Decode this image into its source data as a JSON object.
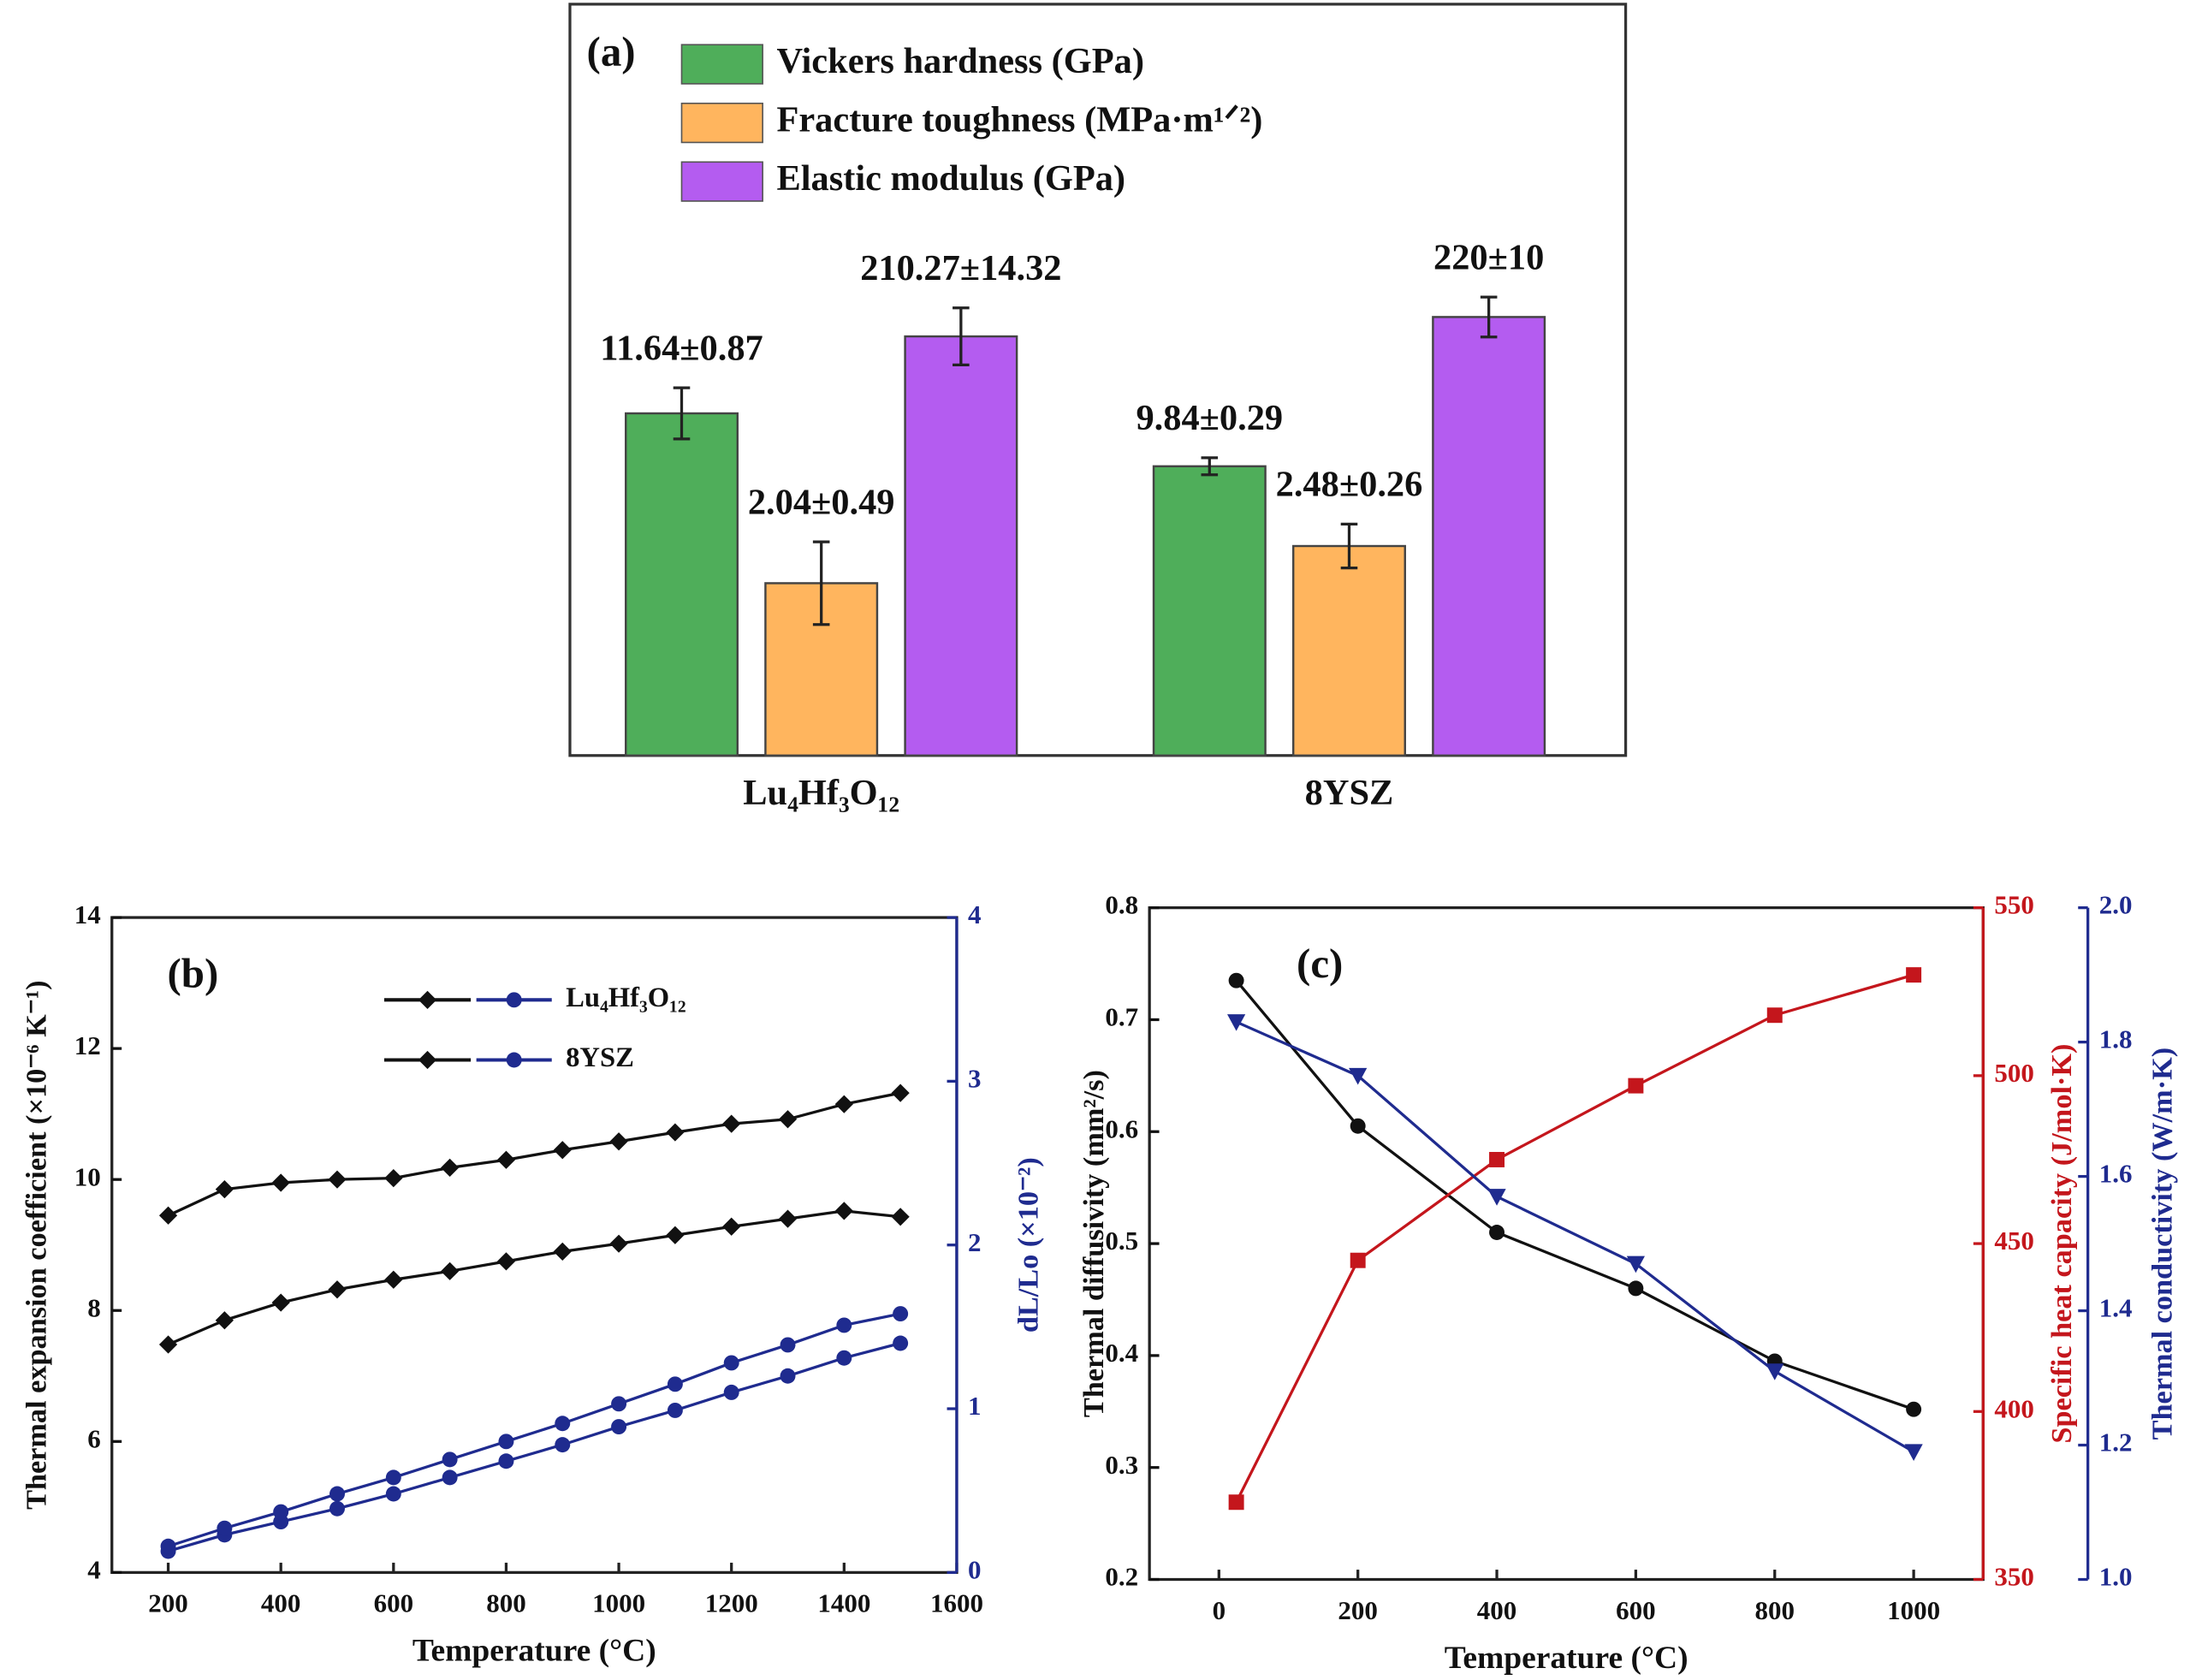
{
  "chart_data": [
    {
      "type": "bar",
      "panel_label": "(a)",
      "categories": [
        "Lu₄Hf₃O₁₂",
        "8YSZ"
      ],
      "series": [
        {
          "name": "Vickers hardness (GPa)",
          "color": "#4fae5a",
          "values": [
            11.64,
            9.84
          ],
          "errors": [
            0.87,
            0.29
          ],
          "value_labels": [
            "11.64±0.87",
            "9.84±0.29"
          ]
        },
        {
          "name": "Fracture toughness (MPa·m¹ᐟ²)",
          "color": "#ffb55e",
          "values": [
            2.04,
            2.48
          ],
          "errors": [
            0.49,
            0.26
          ],
          "value_labels": [
            "2.04±0.49",
            "2.48±0.26"
          ]
        },
        {
          "name": "Elastic modulus (GPa)",
          "color": "#b45cf0",
          "values": [
            210.27,
            220
          ],
          "errors": [
            14.32,
            10
          ],
          "value_labels": [
            "210.27±14.32",
            "220±10"
          ]
        }
      ]
    },
    {
      "type": "line",
      "panel_label": "(b)",
      "x": [
        200,
        300,
        400,
        500,
        600,
        700,
        800,
        900,
        1000,
        1100,
        1200,
        1300,
        1400,
        1500
      ],
      "xlim": [
        100,
        1600
      ],
      "xticks": [
        200,
        400,
        600,
        800,
        1000,
        1200,
        1400,
        1600
      ],
      "ylim": [
        4,
        14
      ],
      "yticks": [
        4,
        6,
        8,
        10,
        12,
        14
      ],
      "y2lim": [
        0,
        4
      ],
      "y2ticks": [
        0,
        1,
        2,
        3,
        4
      ],
      "xlabel": "Temperature (°C)",
      "ylabel": "Thermal expansion coefficient (×10⁻⁶ K⁻¹)",
      "y2label": "dL/Lo (×10⁻²)",
      "series": [
        {
          "name": "Lu₄Hf₃O₁₂",
          "color": "#111111",
          "marker": "diamond",
          "values": [
            7.48,
            7.85,
            8.12,
            8.32,
            8.47,
            8.6,
            8.75,
            8.9,
            9.02,
            9.15,
            9.28,
            9.4,
            9.52,
            9.43
          ],
          "y2_color": "#1f2b8f",
          "y2_marker": "circle",
          "y2_values": [
            0.13,
            0.23,
            0.31,
            0.39,
            0.48,
            0.58,
            0.68,
            0.78,
            0.89,
            0.99,
            1.1,
            1.2,
            1.31,
            1.4
          ]
        },
        {
          "name": "8YSZ",
          "color": "#111111",
          "marker": "diamond",
          "values": [
            9.45,
            9.85,
            9.95,
            10.0,
            10.02,
            10.18,
            10.3,
            10.45,
            10.58,
            10.72,
            10.85,
            10.92,
            11.15,
            11.32
          ],
          "y2_color": "#1f2b8f",
          "y2_marker": "circle",
          "y2_values": [
            0.16,
            0.27,
            0.37,
            0.48,
            0.58,
            0.69,
            0.8,
            0.91,
            1.03,
            1.15,
            1.28,
            1.39,
            1.51,
            1.58
          ]
        }
      ]
    },
    {
      "type": "line",
      "panel_label": "(c)",
      "x": [
        25,
        200,
        400,
        600,
        800,
        1000
      ],
      "xlim": [
        -100,
        1100
      ],
      "xticks": [
        0,
        200,
        400,
        600,
        800,
        1000
      ],
      "ylim": [
        0.2,
        0.8
      ],
      "yticks": [
        0.2,
        0.3,
        0.4,
        0.5,
        0.6,
        0.7,
        0.8
      ],
      "y2lim": [
        350,
        550
      ],
      "y2ticks": [
        350,
        400,
        450,
        500,
        550
      ],
      "y3lim": [
        1,
        2
      ],
      "y3ticks": [
        {
          "value": 1,
          "label": "1.0"
        },
        1.2,
        1.4,
        1.6,
        1.8,
        {
          "value": 2,
          "label": "2.0"
        }
      ],
      "xlabel": "Temperature (°C)",
      "ylabel": "Thermal diffusivity (mm²/s)",
      "y2label": "Specific heat capacity (J/mol·K)",
      "y3label": "Thermal conductivity (W/m·K)",
      "series": [
        {
          "color": "#111111",
          "marker": "circle",
          "values": [
            0.735,
            0.605,
            0.51,
            0.46,
            0.395,
            0.352
          ]
        },
        {
          "color": "#c4161c",
          "marker": "square",
          "axis": "y2",
          "values": [
            373,
            445,
            475,
            497,
            518,
            530
          ]
        },
        {
          "color": "#1f2b8f",
          "marker": "triangle",
          "axis": "y3",
          "values": [
            1.83,
            1.75,
            1.57,
            1.47,
            1.31,
            1.19
          ]
        }
      ]
    }
  ]
}
